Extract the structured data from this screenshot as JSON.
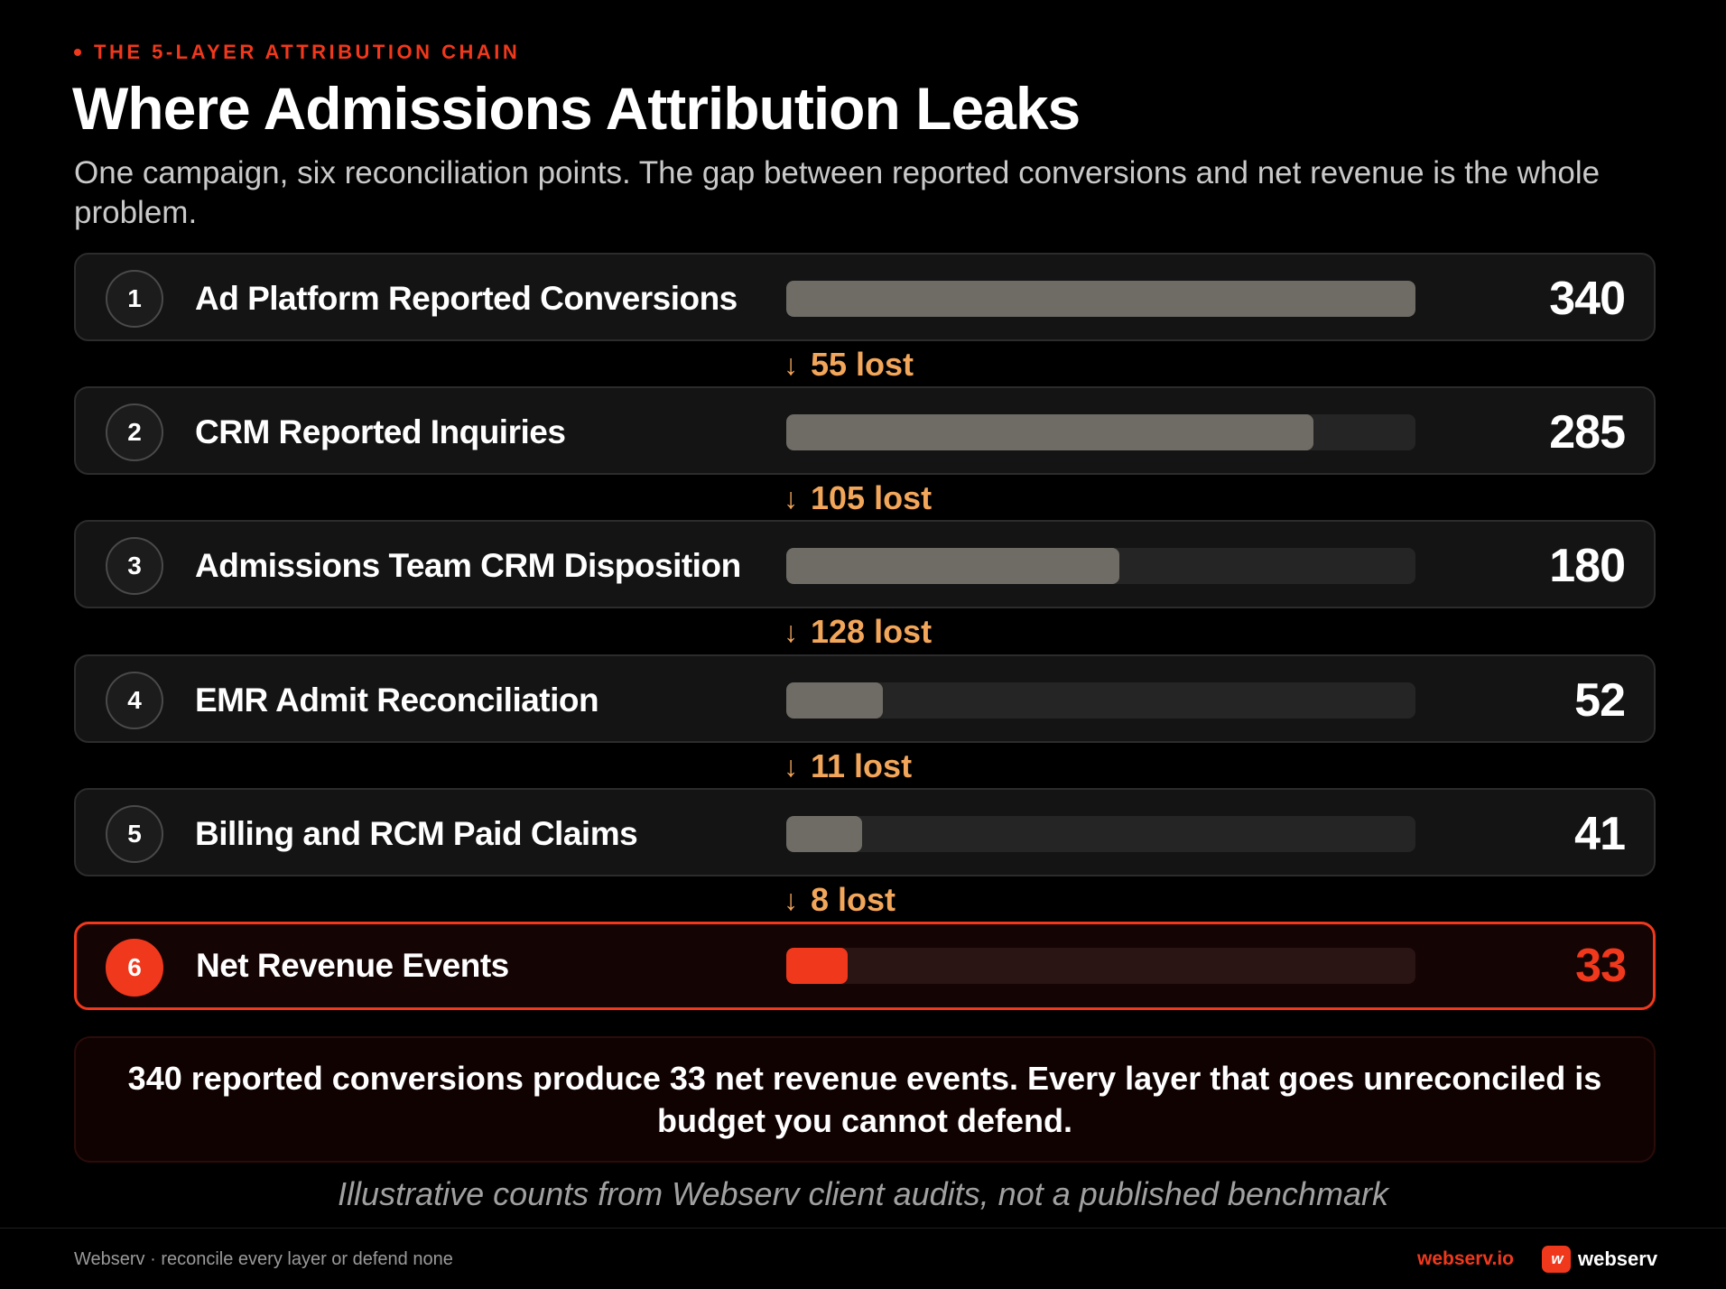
{
  "header": {
    "eyebrow": "THE 5-LAYER ATTRIBUTION CHAIN",
    "title": "Where Admissions Attribution Leaks",
    "subtitle": "One campaign, six reconciliation points. The gap between reported conversions and net revenue is the whole problem."
  },
  "chart_data": {
    "type": "bar",
    "orientation": "horizontal",
    "max": 340,
    "accent_color": "#f0381c",
    "bar_color": "#6f6c66",
    "loss_color": "#f2a65a",
    "stages": [
      {
        "step": "1",
        "label": "Ad Platform Reported Conversions",
        "value": 340
      },
      {
        "step": "2",
        "label": "CRM Reported Inquiries",
        "value": 285
      },
      {
        "step": "3",
        "label": "Admissions Team CRM Disposition",
        "value": 180
      },
      {
        "step": "4",
        "label": "EMR Admit Reconciliation",
        "value": 52
      },
      {
        "step": "5",
        "label": "Billing and RCM Paid Claims",
        "value": 41
      },
      {
        "step": "6",
        "label": "Net Revenue Events",
        "value": 33,
        "highlight": true
      }
    ],
    "losses": [
      {
        "arrow": "↓",
        "text": "55 lost"
      },
      {
        "arrow": "↓",
        "text": "105 lost"
      },
      {
        "arrow": "↓",
        "text": "128 lost"
      },
      {
        "arrow": "↓",
        "text": "11 lost"
      },
      {
        "arrow": "↓",
        "text": "8 lost"
      }
    ]
  },
  "callout": "340 reported conversions produce 33 net revenue events. Every layer that goes unreconciled is budget you cannot defend.",
  "caption": "Illustrative counts from Webserv client audits, not a published benchmark",
  "footer": {
    "left": "Webserv · reconcile every layer or defend none",
    "url": "webserv.io",
    "logo_mark": "w",
    "brand": "webserv"
  }
}
